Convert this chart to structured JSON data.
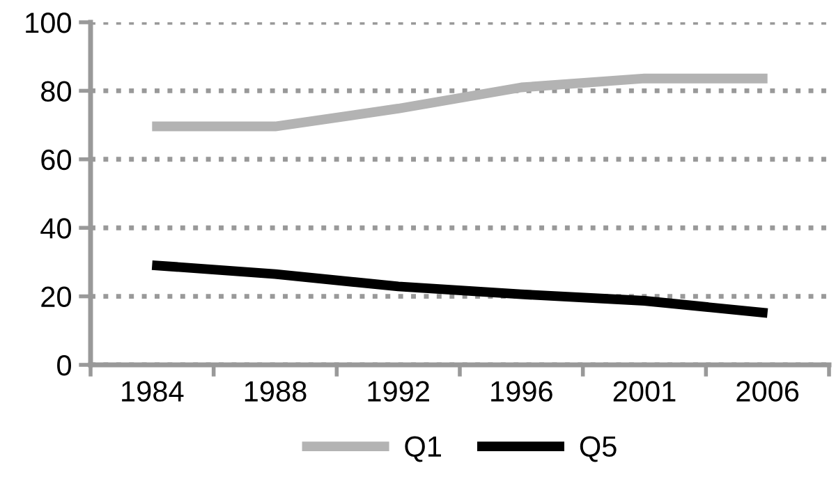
{
  "chart_data": {
    "type": "line",
    "categories": [
      "1984",
      "1988",
      "1992",
      "1996",
      "2001",
      "2006"
    ],
    "series": [
      {
        "name": "Q1",
        "color": "#b3b3b3",
        "values": [
          69.6,
          69.6,
          74.8,
          81,
          83.6,
          83.6
        ]
      },
      {
        "name": "Q5",
        "color": "#000000",
        "values": [
          29.1,
          26.5,
          22.9,
          20.6,
          18.7,
          15.1
        ]
      }
    ],
    "ylim": [
      0,
      100
    ],
    "yticks": [
      0,
      20,
      40,
      60,
      80,
      100
    ],
    "grid": "y",
    "legend": "bottom",
    "marker": "none",
    "line_style": "solid"
  }
}
